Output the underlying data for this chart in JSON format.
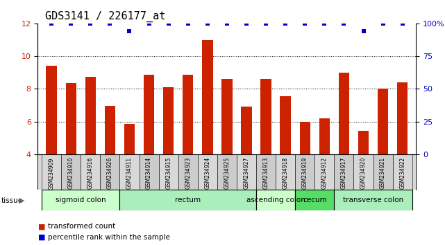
{
  "title": "GDS3141 / 226177_at",
  "samples": [
    "GSM234909",
    "GSM234910",
    "GSM234916",
    "GSM234926",
    "GSM234911",
    "GSM234914",
    "GSM234915",
    "GSM234923",
    "GSM234924",
    "GSM234925",
    "GSM234927",
    "GSM234913",
    "GSM234918",
    "GSM234919",
    "GSM234912",
    "GSM234917",
    "GSM234920",
    "GSM234921",
    "GSM234922"
  ],
  "transformed_counts": [
    9.4,
    8.35,
    8.75,
    6.95,
    5.85,
    8.85,
    8.1,
    8.85,
    10.95,
    8.6,
    6.9,
    8.6,
    7.55,
    6.0,
    6.2,
    9.0,
    5.45,
    8.0,
    8.4
  ],
  "percentile_ranks": [
    100,
    100,
    100,
    100,
    94,
    100,
    100,
    100,
    100,
    100,
    100,
    100,
    100,
    100,
    100,
    100,
    94,
    100,
    100
  ],
  "tissue_groups": [
    {
      "label": "sigmoid colon",
      "start": 0,
      "end": 4,
      "color": "#ccffcc"
    },
    {
      "label": "rectum",
      "start": 4,
      "end": 11,
      "color": "#aaeebb"
    },
    {
      "label": "ascending colon",
      "start": 11,
      "end": 13,
      "color": "#ccffcc"
    },
    {
      "label": "cecum",
      "start": 13,
      "end": 15,
      "color": "#55dd66"
    },
    {
      "label": "transverse colon",
      "start": 15,
      "end": 19,
      "color": "#aaeebb"
    }
  ],
  "ylim_left": [
    4,
    12
  ],
  "ylim_right": [
    0,
    100
  ],
  "yticks_left": [
    4,
    6,
    8,
    10,
    12
  ],
  "yticks_right": [
    0,
    25,
    50,
    75,
    100
  ],
  "bar_color": "#cc2200",
  "dot_color": "#0000cc",
  "plot_bg": "#ffffff",
  "title_fontsize": 11,
  "tick_fontsize": 8,
  "tissue_fontsize": 7.5,
  "sample_fontsize": 5.5
}
